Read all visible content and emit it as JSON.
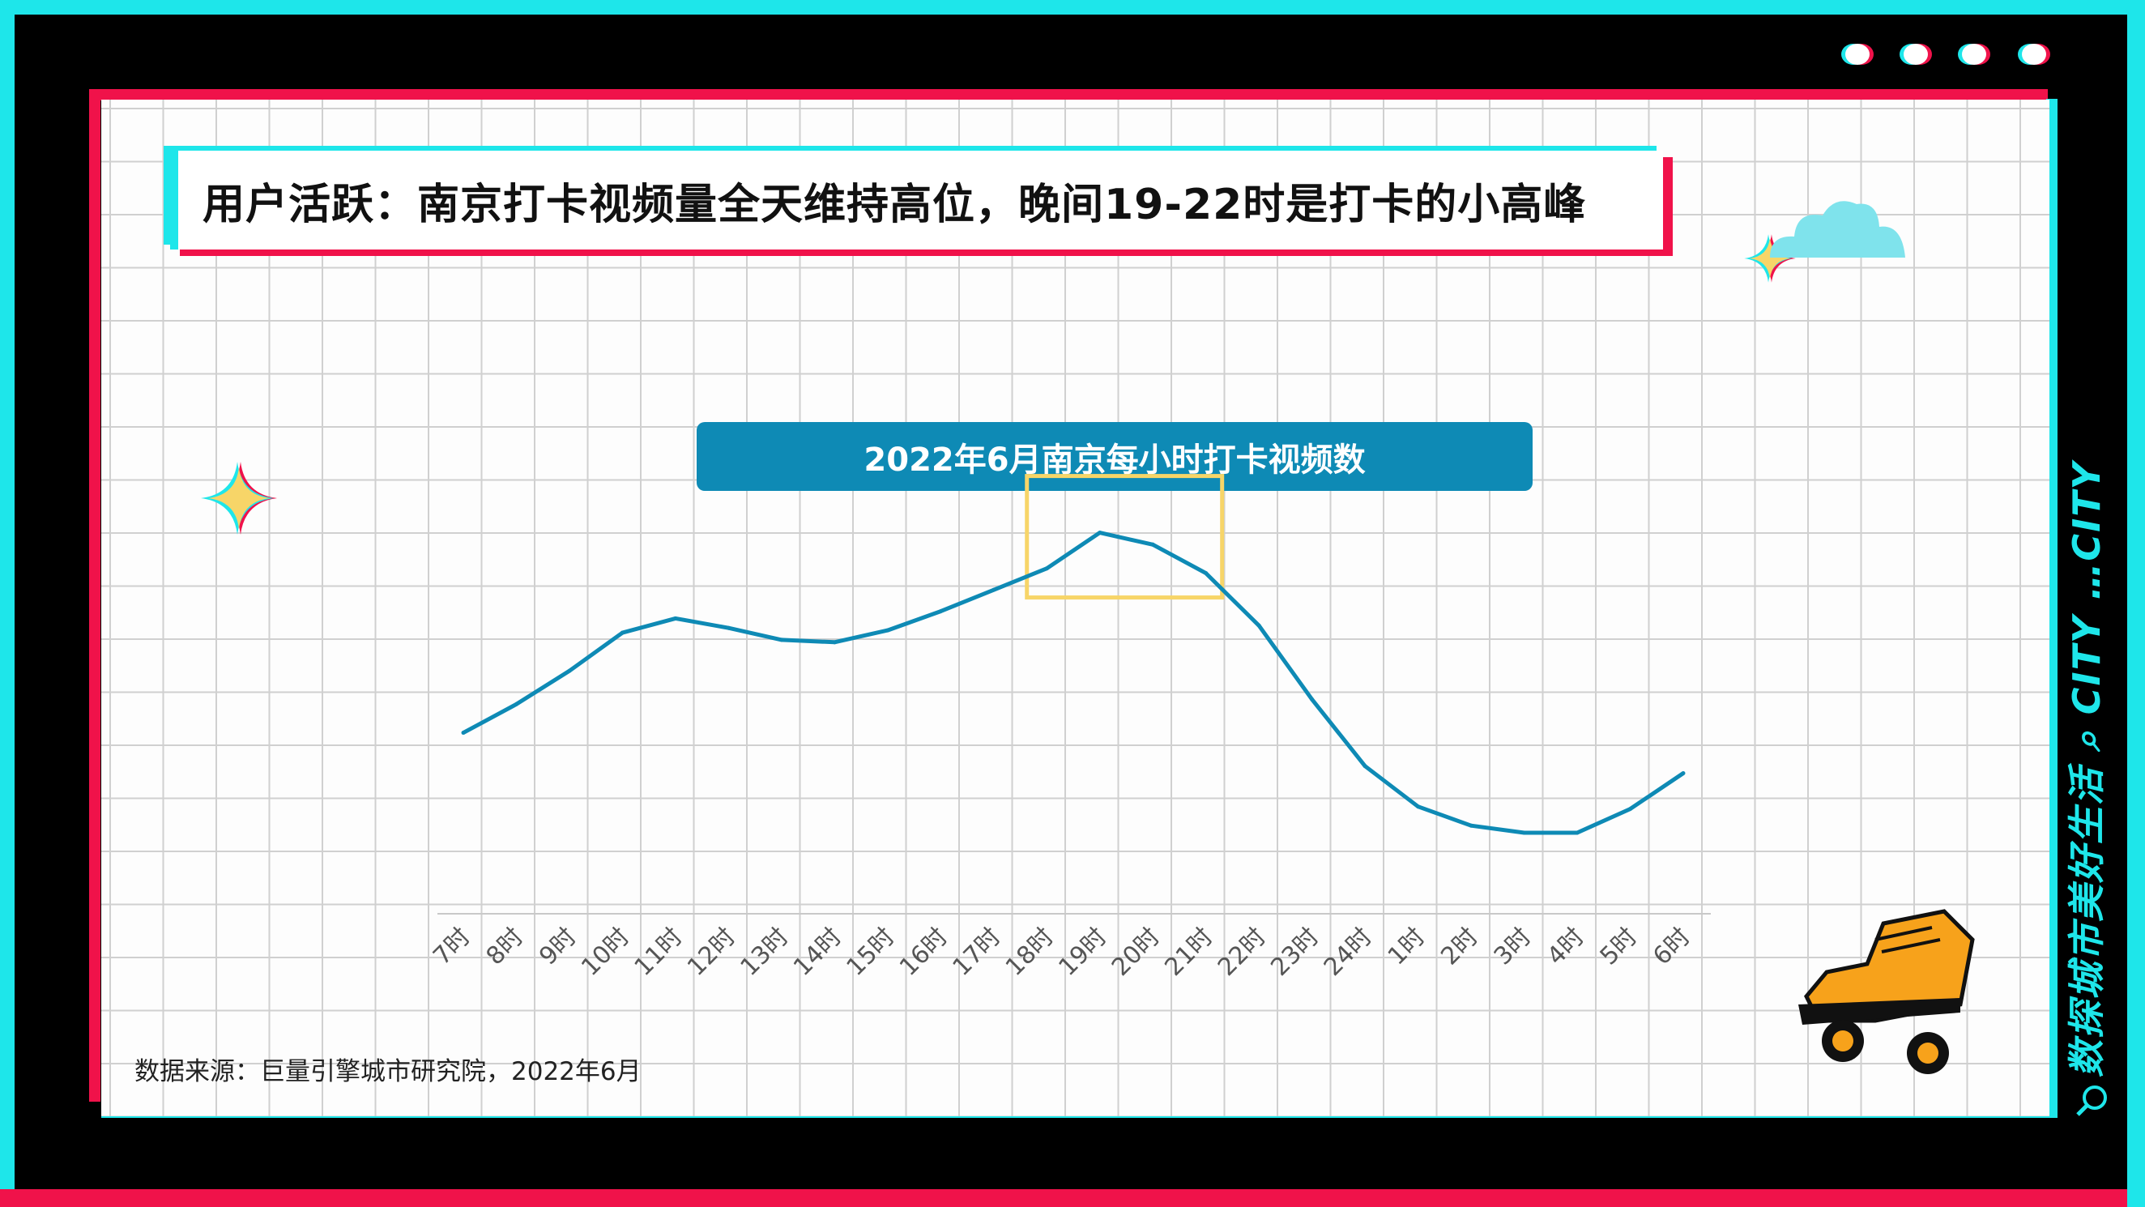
{
  "title": "用户活跃：南京打卡视频量全天维持高位，晚间19-22时是打卡的小高峰",
  "source": "数据来源：巨量引擎城市研究院，2022年6月",
  "side_text": "数探城市美好生活 ⌕ CITY …CITY",
  "colors": {
    "cyan": "#1ee6ea",
    "red": "#f0124a",
    "line": "#0e8ab5",
    "highlight": "#f7d568"
  },
  "chart_data": {
    "type": "line",
    "title": "2022年6月南京每小时打卡视频数",
    "categories": [
      "7时",
      "8时",
      "9时",
      "10时",
      "11时",
      "12时",
      "13时",
      "14时",
      "15时",
      "16时",
      "17时",
      "18时",
      "19时",
      "20时",
      "21时",
      "22时",
      "23时",
      "24时",
      "1时",
      "2时",
      "3时",
      "4时",
      "5时",
      "6时"
    ],
    "series": [
      {
        "values": [
          38,
          44,
          51,
          59,
          62,
          60,
          57.5,
          57,
          59.5,
          63.5,
          68,
          72.5,
          80,
          77.5,
          71.5,
          60.5,
          45,
          31,
          22.5,
          18.5,
          17,
          17,
          22,
          29.5
        ]
      }
    ],
    "ylim": [
      0,
      100
    ],
    "grid": false,
    "highlight": {
      "from": "19时",
      "to": "21时"
    }
  }
}
